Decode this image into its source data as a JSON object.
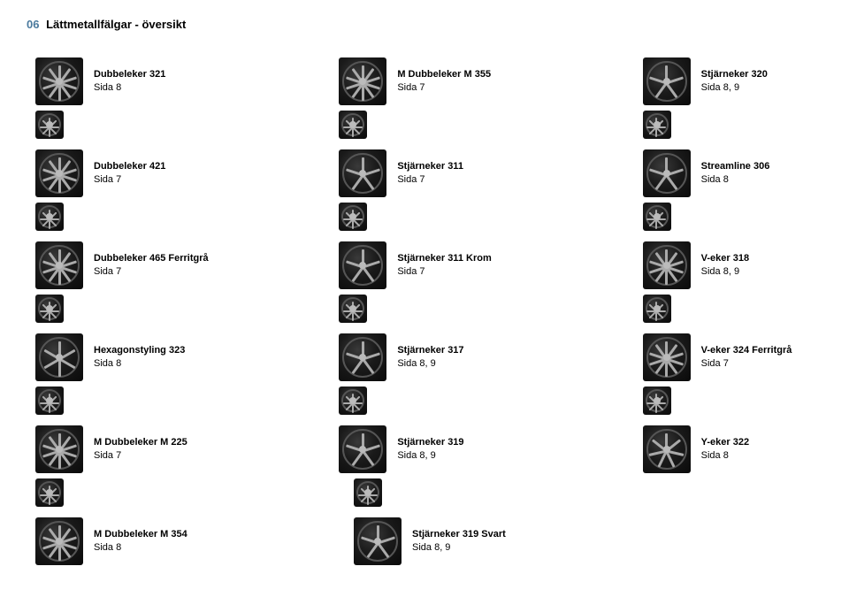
{
  "header": {
    "num": "06",
    "title": "Lättmetallfälgar - översikt"
  },
  "thumb": {
    "bg_gradient": "radial-gradient(circle at 40% 35%, #3a3a3a 0%, #1a1a1a 45%, #0a0a0a 100%)",
    "tire_color": "#1a1a1a",
    "spoke_color": "#aaaaaa"
  },
  "rows": [
    [
      {
        "name": "Dubbeleker 321",
        "sub": "Sida 8",
        "spokes": 10
      },
      {
        "name": "M Dubbeleker M 355",
        "sub": "Sida 7",
        "spokes": 10
      },
      {
        "name": "Stjärneker 320",
        "sub": "Sida 8, 9",
        "spokes": 5
      }
    ],
    [
      {
        "name": "Dubbeleker 421",
        "sub": "Sida 7",
        "spokes": 10
      },
      {
        "name": "Stjärneker 311",
        "sub": "Sida  7",
        "spokes": 5
      },
      {
        "name": "Streamline 306",
        "sub": "Sida 8",
        "spokes": 5
      }
    ],
    [
      {
        "name": "Dubbeleker 465 Ferritgrå",
        "sub": "Sida 7",
        "spokes": 10
      },
      {
        "name": "Stjärneker 311 Krom",
        "sub": "Sida 7",
        "spokes": 5
      },
      {
        "name": "V-eker 318",
        "sub": "Sida 8, 9",
        "spokes": 10
      }
    ],
    [
      {
        "name": "Hexagonstyling 323",
        "sub": "Sida 8",
        "spokes": 6
      },
      {
        "name": "Stjärneker 317",
        "sub": "Sida 8, 9",
        "spokes": 5
      },
      {
        "name": "V-eker 324 Ferritgrå",
        "sub": "Sida 7",
        "spokes": 10
      }
    ],
    [
      {
        "name": "M Dubbeleker M 225",
        "sub": "Sida 7",
        "spokes": 10
      },
      {
        "name": "Stjärneker 319",
        "sub": "Sida 8, 9",
        "spokes": 5
      },
      {
        "name": "Y-eker 322",
        "sub": "Sida 8",
        "spokes": 7
      }
    ],
    [
      {
        "name": "M Dubbeleker M 354",
        "sub": "Sida 8",
        "spokes": 10
      },
      {
        "name": "Stjärneker 319 Svart",
        "sub": "Sida 8, 9",
        "spokes": 5
      }
    ]
  ],
  "extraThumbRows": [
    {
      "after_row": 0,
      "count": 3
    },
    {
      "after_row": 1,
      "count": 3
    },
    {
      "after_row": 2,
      "count": 3
    },
    {
      "after_row": 3,
      "count": 3
    },
    {
      "after_row": 4,
      "count": 2
    }
  ]
}
